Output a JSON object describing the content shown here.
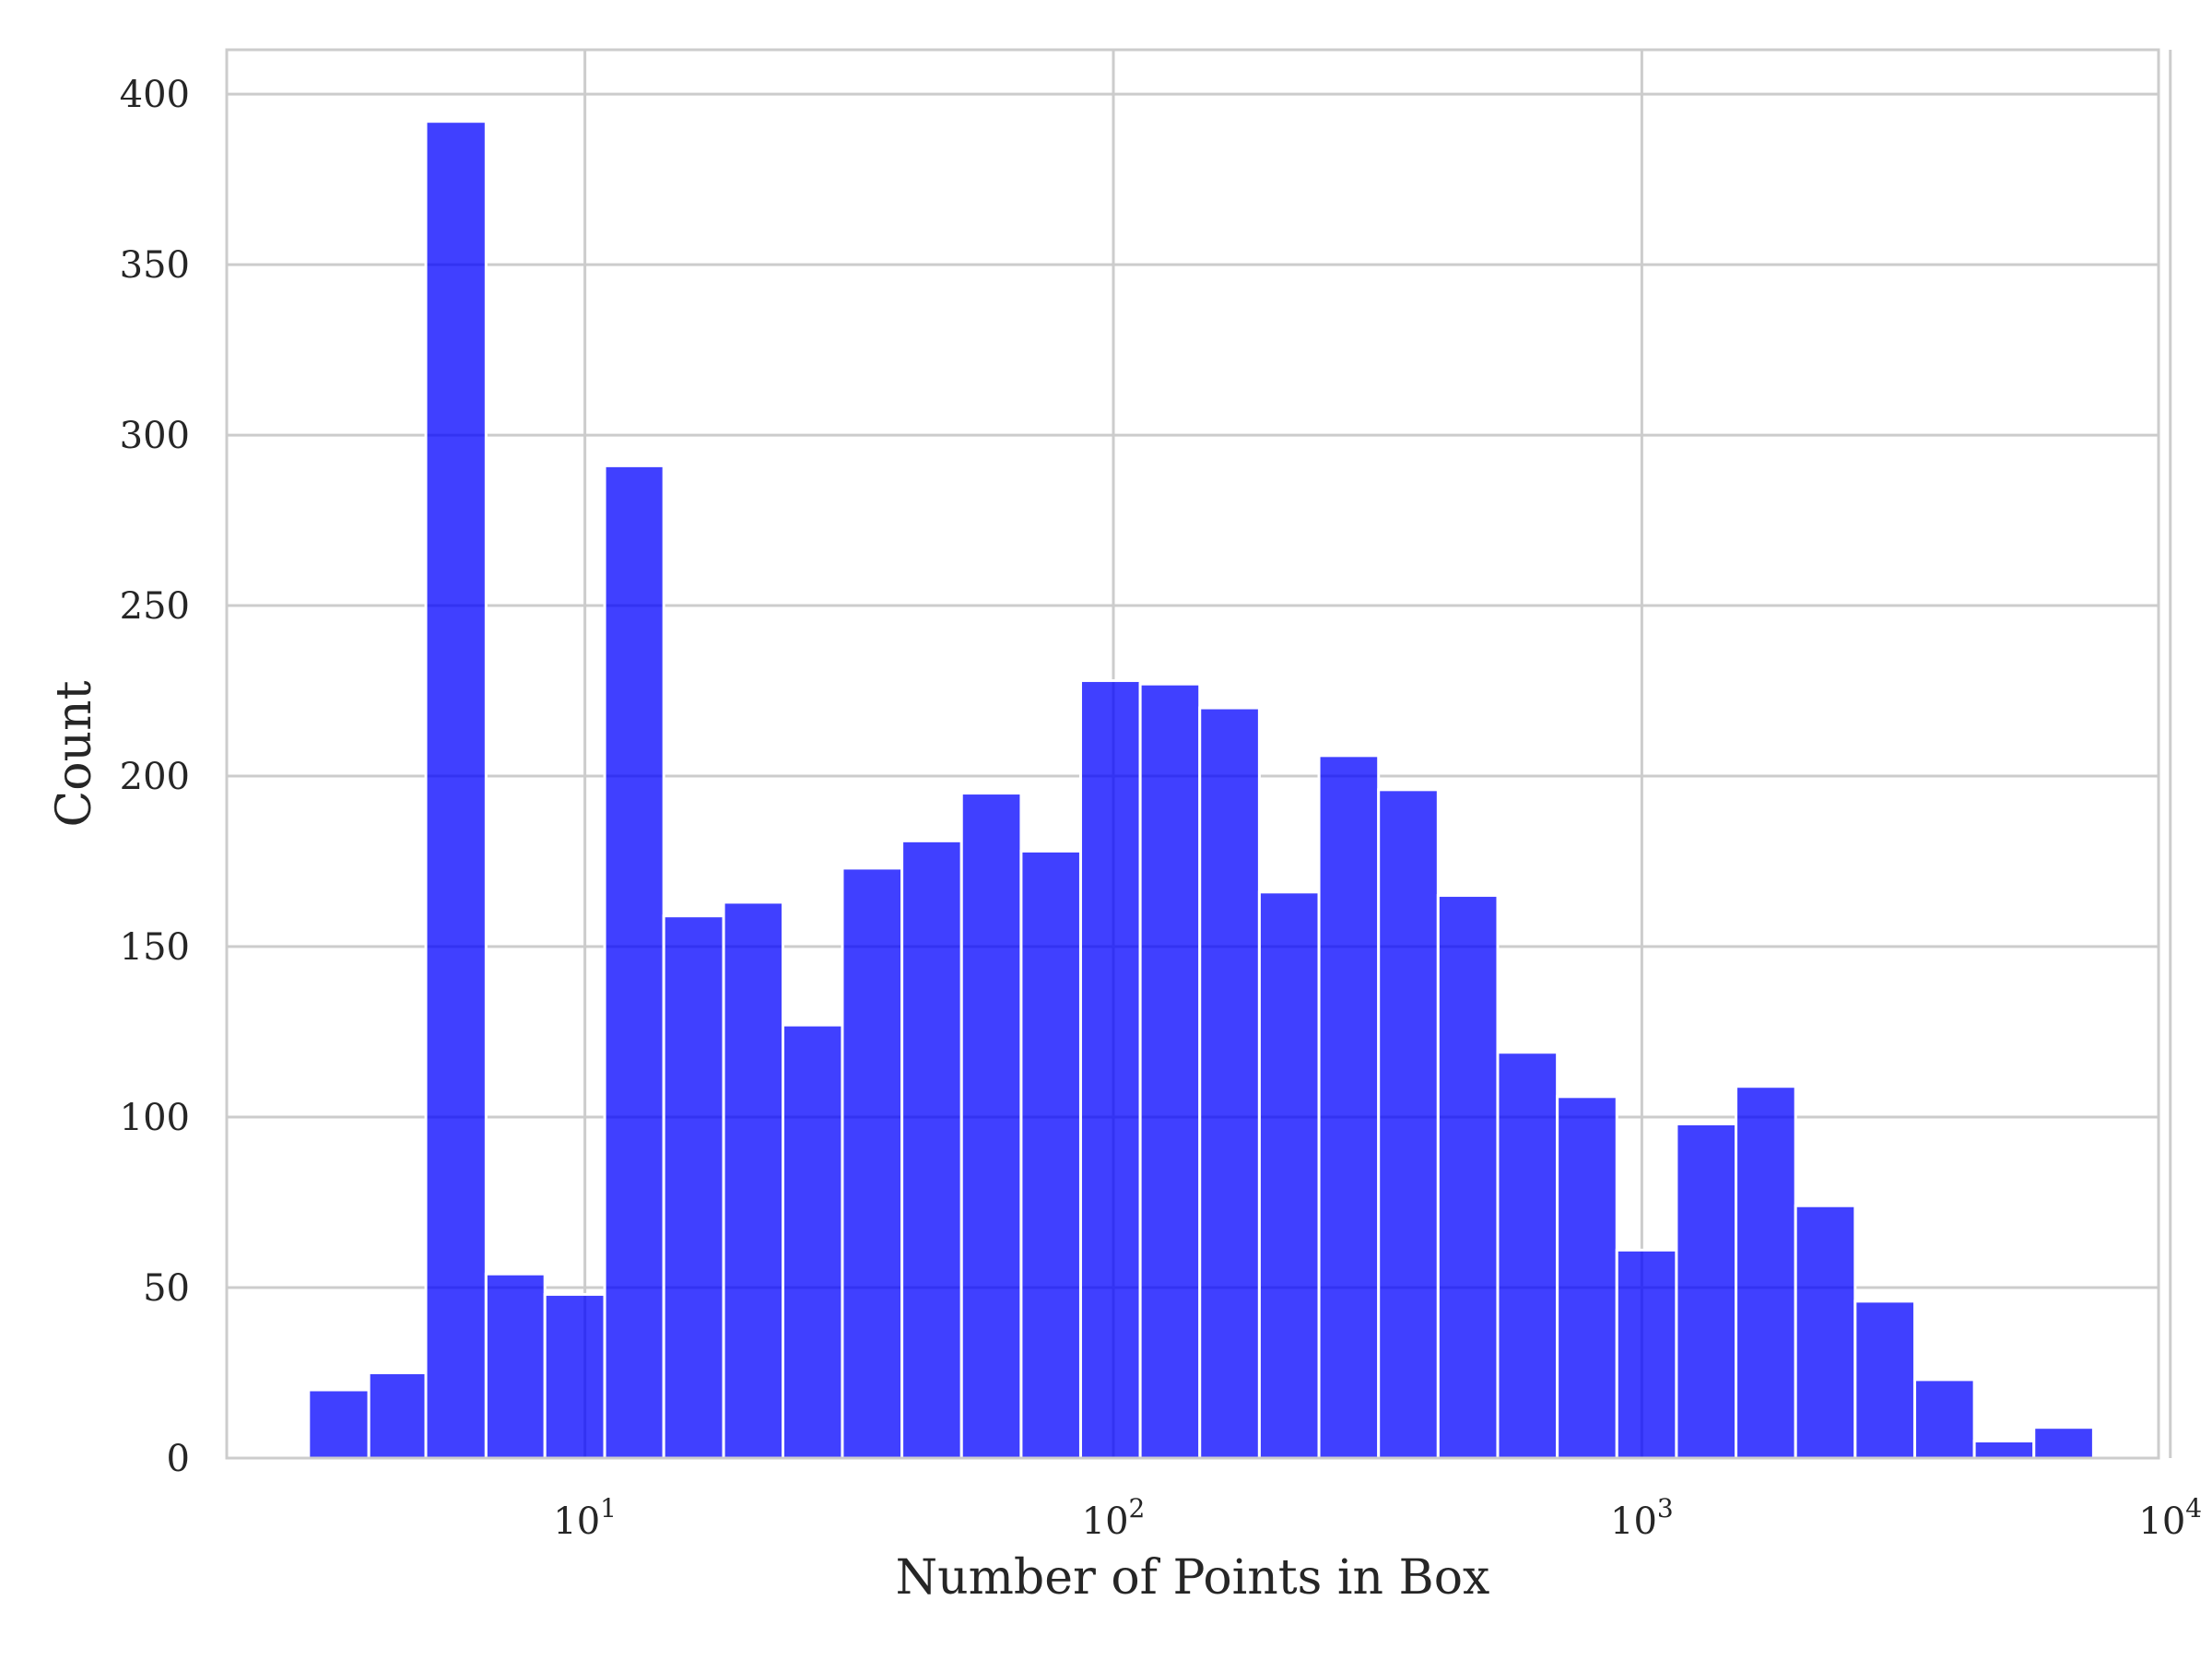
{
  "chart_data": {
    "type": "bar",
    "subtype": "histogram",
    "title": "",
    "xlabel": "Number of Points in Box",
    "ylabel": "Count",
    "x_scale": "log",
    "xlim": [
      2.1,
      9500
    ],
    "ylim": [
      0,
      413
    ],
    "grid": true,
    "legend": "none",
    "bar_color": "#0000ff",
    "bar_alpha": 0.75,
    "bin_edges": [
      3.0,
      3.9,
      5.0,
      6.5,
      8.4,
      10.9,
      14.1,
      18.3,
      23.7,
      30.7,
      39.8,
      51.6,
      66.9,
      86.7,
      112.4,
      145.7,
      188.9,
      244.9,
      317.5,
      411.6,
      533.6,
      691.8,
      896.8,
      1162.6,
      1507.2,
      1953.9,
      2533.0,
      3283.8,
      4257.1,
      5518.9,
      7154.7
    ],
    "counts": [
      20,
      25,
      392,
      54,
      48,
      291,
      159,
      163,
      127,
      173,
      181,
      195,
      178,
      228,
      227,
      220,
      166,
      206,
      196,
      165,
      119,
      106,
      61,
      98,
      109,
      74,
      46,
      23,
      5,
      9
    ],
    "x_ticks": [
      {
        "value": 10,
        "base": "10",
        "exp": "1"
      },
      {
        "value": 100,
        "base": "10",
        "exp": "2"
      },
      {
        "value": 1000,
        "base": "10",
        "exp": "3"
      },
      {
        "value": 10000,
        "base": "10",
        "exp": "4"
      }
    ],
    "y_ticks": [
      0,
      50,
      100,
      150,
      200,
      250,
      300,
      350,
      400
    ]
  }
}
